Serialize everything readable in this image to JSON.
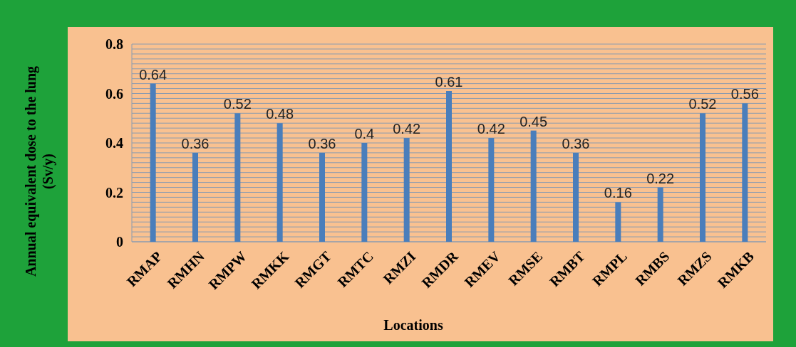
{
  "chart_data": {
    "type": "bar",
    "xlabel": "Locations",
    "ylabel": "Annual equivalent dose to the lung\n(Sv/y)",
    "categories": [
      "RMAP",
      "RMHN",
      "RMPW",
      "RMKK",
      "RMGT",
      "RMTC",
      "RMZI",
      "RMDR",
      "RMEV",
      "RMSE",
      "RMBT",
      "RMPL",
      "RMBS",
      "RMZS",
      "RMKB"
    ],
    "values": [
      0.64,
      0.36,
      0.52,
      0.48,
      0.36,
      0.4,
      0.42,
      0.61,
      0.42,
      0.45,
      0.36,
      0.16,
      0.22,
      0.52,
      0.56
    ],
    "color": "#4a7ebb",
    "data_labels": true,
    "grid": "y",
    "ylim": [
      0,
      0.8
    ],
    "yticks": [
      0,
      {
        "value": 0.02,
        "label": null
      },
      {
        "value": 0.04,
        "label": null
      },
      {
        "value": 0.06,
        "label": null
      },
      {
        "value": 0.08,
        "label": null
      },
      {
        "value": 0.1,
        "label": null
      },
      {
        "value": 0.12,
        "label": null
      },
      {
        "value": 0.14,
        "label": null
      },
      {
        "value": 0.16,
        "label": null
      },
      {
        "value": 0.18,
        "label": null
      },
      0.2,
      {
        "value": 0.22,
        "label": null
      },
      {
        "value": 0.24,
        "label": null
      },
      {
        "value": 0.26,
        "label": null
      },
      {
        "value": 0.28,
        "label": null
      },
      {
        "value": 0.3,
        "label": null
      },
      {
        "value": 0.32,
        "label": null
      },
      {
        "value": 0.34,
        "label": null
      },
      {
        "value": 0.36,
        "label": null
      },
      {
        "value": 0.38,
        "label": null
      },
      0.4,
      {
        "value": 0.42,
        "label": null
      },
      {
        "value": 0.44,
        "label": null
      },
      {
        "value": 0.46,
        "label": null
      },
      {
        "value": 0.48,
        "label": null
      },
      {
        "value": 0.5,
        "label": null
      },
      {
        "value": 0.52,
        "label": null
      },
      {
        "value": 0.54,
        "label": null
      },
      {
        "value": 0.56,
        "label": null
      },
      {
        "value": 0.58,
        "label": null
      },
      0.6,
      {
        "value": 0.62,
        "label": null
      },
      {
        "value": 0.64,
        "label": null
      },
      {
        "value": 0.66,
        "label": null
      },
      {
        "value": 0.68,
        "label": null
      },
      {
        "value": 0.7,
        "label": null
      },
      {
        "value": 0.72,
        "label": null
      },
      {
        "value": 0.74,
        "label": null
      },
      {
        "value": 0.76,
        "label": null
      },
      {
        "value": 0.78,
        "label": null
      },
      0.8
    ]
  }
}
